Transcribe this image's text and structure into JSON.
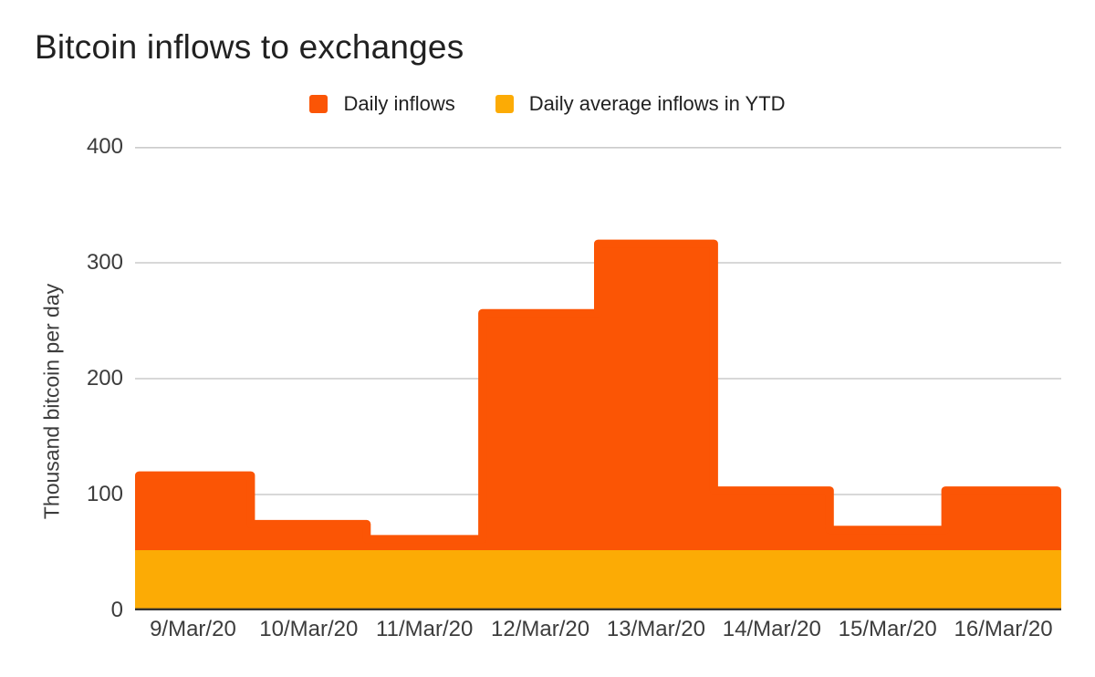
{
  "title": "Bitcoin inflows to exchanges",
  "chart_data": {
    "type": "area",
    "variant": "stepped-area",
    "title": "Bitcoin inflows to exchanges",
    "categories": [
      "9/Mar/20",
      "10/Mar/20",
      "11/Mar/20",
      "12/Mar/20",
      "13/Mar/20",
      "14/Mar/20",
      "15/Mar/20",
      "16/Mar/20"
    ],
    "series": [
      {
        "name": "Daily inflows",
        "color": "#fb5505",
        "values": [
          120,
          78,
          65,
          260,
          320,
          107,
          73,
          107
        ]
      },
      {
        "name": "Daily average inflows in YTD",
        "color": "#fcab05",
        "values": [
          52,
          52,
          52,
          52,
          52,
          52,
          52,
          52
        ]
      }
    ],
    "xlabel": "",
    "ylabel": "Thousand bitcoin per day",
    "ylim": [
      0,
      400
    ],
    "y_ticks": [
      0,
      100,
      200,
      300,
      400
    ],
    "grid": true,
    "legend_position": "top"
  },
  "colors": {
    "background": "#ffffff",
    "gridline": "#cbcbcb",
    "axis_line": "#333333",
    "title_text": "#212121",
    "tick_text": "#3c3c3c"
  }
}
